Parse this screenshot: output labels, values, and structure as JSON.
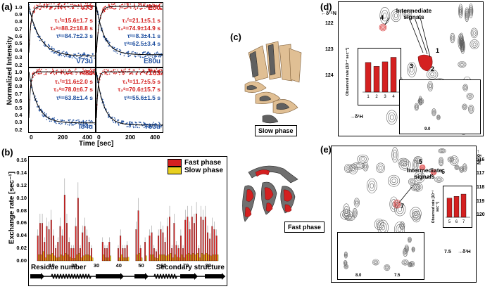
{
  "panel_a": {
    "letter": "(a)",
    "ylabel": "Normalized Intensity",
    "xlabel": "Time [sec]",
    "xticks": [
      "0",
      "200",
      "400"
    ],
    "yticks": [
      "1.0",
      "0.9",
      "0.8",
      "0.7",
      "0.6",
      "0.5",
      "0.4",
      "0.3",
      "0.2"
    ],
    "subplots": [
      {
        "tag_top": "V73",
        "tag_bottom": "V73u",
        "tau1": "τ₁ᶠ=15.6±1.7 s",
        "tau2": "τ₂ˢ=88.2±18.8 s",
        "tau3": "τᵘ=84.7±2.3 s"
      },
      {
        "tag_top": "E80",
        "tag_bottom": "E80u",
        "tau1": "τ₁ᶠ=21.1±5.1 s",
        "tau2": "τ₂ˢ=74.9±14.9 s",
        "tau3": "τᵘ=8.3±4.1 s",
        "tau4": "τᵘ=62.5±3.4 s"
      },
      {
        "tag_top": "I84",
        "tag_bottom": "I84u",
        "tau1": "τ₁ᶠ=11.6±2.0 s",
        "tau2": "τ₂ˢ=78.0±6.7 s",
        "tau3": "τᵘ=63.8±1.4 s"
      },
      {
        "tag_top": "T63",
        "tag_bottom": "T63u",
        "tau1": "τ₁ᶠ=11.7±5.5 s",
        "tau2": "τ₂ˢ=70.6±15.7 s",
        "tau3": "τᵘ=55.6±1.5 s"
      }
    ]
  },
  "panel_b": {
    "letter": "(b)",
    "ylabel": "Exchange rate [sec⁻¹]",
    "yticks": [
      "0.16",
      "0.14",
      "0.12",
      "0.10",
      "0.08",
      "0.06",
      "0.04",
      "0.02",
      "0.00"
    ],
    "xticks": [
      "10",
      "20",
      "30",
      "40",
      "50",
      "60",
      "70",
      "80"
    ],
    "legend_fast": "Fast phase",
    "legend_slow": "Slow phase",
    "label_residue": "Residue number",
    "label_secondary": "Secondary structure",
    "color_fast": "#d42020",
    "color_slow": "#e8d020"
  },
  "panel_c": {
    "letter": "(c)",
    "label_slow": "Slow phase",
    "label_fast": "Fast phase"
  },
  "panel_d": {
    "letter": "(d)",
    "intermediate": "Intermediate signals",
    "peaks": [
      "1",
      "2",
      "3",
      "4"
    ],
    "axis_15n": "←δ¹⁵N",
    "yticks": [
      "122",
      "123",
      "124"
    ],
    "xticks": [
      "9.0",
      "8.6"
    ],
    "axis_1h": "→δ¹H",
    "inset_ylabel": "Observed rate [10⁻² sec⁻¹]",
    "inset_yticks": [
      "6",
      "5",
      "4",
      "3",
      "2",
      "1",
      "0"
    ],
    "inset_xticks": [
      "1",
      "2",
      "3",
      "4"
    ],
    "sub_yticks": [
      "122",
      "123",
      "124"
    ],
    "sub_xticks": [
      "9.0"
    ]
  },
  "panel_e": {
    "letter": "(e)",
    "intermediate": "Intermediate signals",
    "peaks": [
      "5",
      "6",
      "7"
    ],
    "axis_15n": "←δ¹⁵N",
    "yticks": [
      "116",
      "117",
      "118",
      "119",
      "120"
    ],
    "xticks": [
      "7.5"
    ],
    "axis_1h": "→δ¹H",
    "inset_ylabel": "Observed rate [10⁻² sec⁻¹]",
    "inset_yticks": [
      "6.0",
      "5.0",
      "4.0",
      "3.0",
      "2.0",
      "1.0",
      "0.0"
    ],
    "inset_xticks": [
      "5",
      "6",
      "7"
    ],
    "sub_yticks": [
      "117",
      "118",
      "119",
      "120"
    ],
    "sub_xticks": [
      "8.0",
      "7.5"
    ]
  },
  "chart_data": [
    {
      "type": "scatter",
      "title": "",
      "xlabel": "Time [sec]",
      "ylabel": "Normalized Intensity",
      "series": [
        {
          "name": "V73",
          "x": [
            0,
            20,
            50,
            100,
            200,
            300,
            500
          ],
          "y": [
            0.35,
            0.65,
            0.85,
            0.95,
            1.0,
            1.0,
            1.0
          ]
        },
        {
          "name": "V73u",
          "x": [
            0,
            20,
            50,
            100,
            200,
            300,
            500
          ],
          "y": [
            1.0,
            0.8,
            0.6,
            0.42,
            0.33,
            0.31,
            0.3
          ]
        }
      ]
    },
    {
      "type": "bar",
      "xlabel": "Residue number",
      "ylabel": "Exchange rate [sec⁻¹]",
      "ylim": [
        0,
        0.16
      ],
      "categories": [
        4,
        5,
        6,
        7,
        8,
        9,
        10,
        11,
        12,
        13,
        14,
        15,
        16,
        17,
        18,
        19,
        20,
        21,
        22,
        23,
        24,
        25,
        26,
        27,
        28,
        33,
        34,
        35,
        36,
        40,
        41,
        42,
        43,
        44,
        48,
        49,
        50,
        52,
        54,
        55,
        56,
        57,
        58,
        59,
        60,
        61,
        62,
        63,
        64,
        65,
        66,
        67,
        68,
        69,
        70,
        71,
        72,
        73,
        74,
        75,
        76,
        77,
        78,
        79,
        80,
        81,
        82,
        83,
        84
      ],
      "series": [
        {
          "name": "Fast phase",
          "values": [
            0.04,
            0.06,
            0.06,
            0.03,
            0.055,
            0.05,
            0.065,
            0.04,
            0.02,
            0.03,
            0.055,
            0.04,
            0.105,
            0.06,
            0.03,
            0.02,
            0.02,
            0.055,
            0.1,
            0.02,
            0.045,
            0.055,
            0.04,
            0.03,
            0.02,
            0.03,
            0.02,
            0.02,
            0.03,
            0.02,
            0.04,
            0.02,
            0.02,
            0.025,
            0.05,
            0.08,
            0.02,
            0.03,
            0.04,
            0.045,
            0.02,
            0.015,
            0.04,
            0.05,
            0.045,
            0.03,
            0.055,
            0.07,
            0.02,
            0.06,
            0.025,
            0.02,
            0.04,
            0.02,
            0.065,
            0.07,
            0.05,
            0.07,
            0.06,
            0.075,
            0.02,
            0.07,
            0.065,
            0.07,
            0.045,
            0.035,
            0.055,
            0.05,
            0.04
          ]
        },
        {
          "name": "Slow phase",
          "values": [
            0.01,
            0.01,
            0.015,
            0.005,
            0.01,
            0.01,
            0.012,
            0.008,
            0.005,
            0.006,
            0.01,
            0.008,
            0.012,
            0.01,
            0.006,
            0.004,
            0.004,
            0.01,
            0.012,
            0.005,
            0.008,
            0.01,
            0.01,
            0.008,
            0.005,
            0.01,
            0.005,
            0.005,
            0.008,
            0.005,
            0.01,
            0.005,
            0.005,
            0.006,
            0.01,
            0.012,
            0.005,
            0.008,
            0.01,
            0.01,
            0.005,
            0.004,
            0.01,
            0.01,
            0.01,
            0.008,
            0.01,
            0.012,
            0.005,
            0.01,
            0.006,
            0.005,
            0.01,
            0.005,
            0.01,
            0.012,
            0.01,
            0.012,
            0.01,
            0.012,
            0.005,
            0.012,
            0.01,
            0.012,
            0.01,
            0.008,
            0.01,
            0.01,
            0.01
          ]
        }
      ]
    },
    {
      "type": "bar",
      "ylabel": "Observed rate [10⁻² sec⁻¹]",
      "categories": [
        "1",
        "2",
        "3",
        "4"
      ],
      "values": [
        4.6,
        4.0,
        4.7,
        5.4
      ],
      "ylim": [
        0,
        6
      ]
    },
    {
      "type": "bar",
      "ylabel": "Observed rate [10⁻² sec⁻¹]",
      "categories": [
        "5",
        "6",
        "7"
      ],
      "values": [
        4.3,
        4.7,
        5.2
      ],
      "ylim": [
        0,
        6
      ]
    }
  ]
}
